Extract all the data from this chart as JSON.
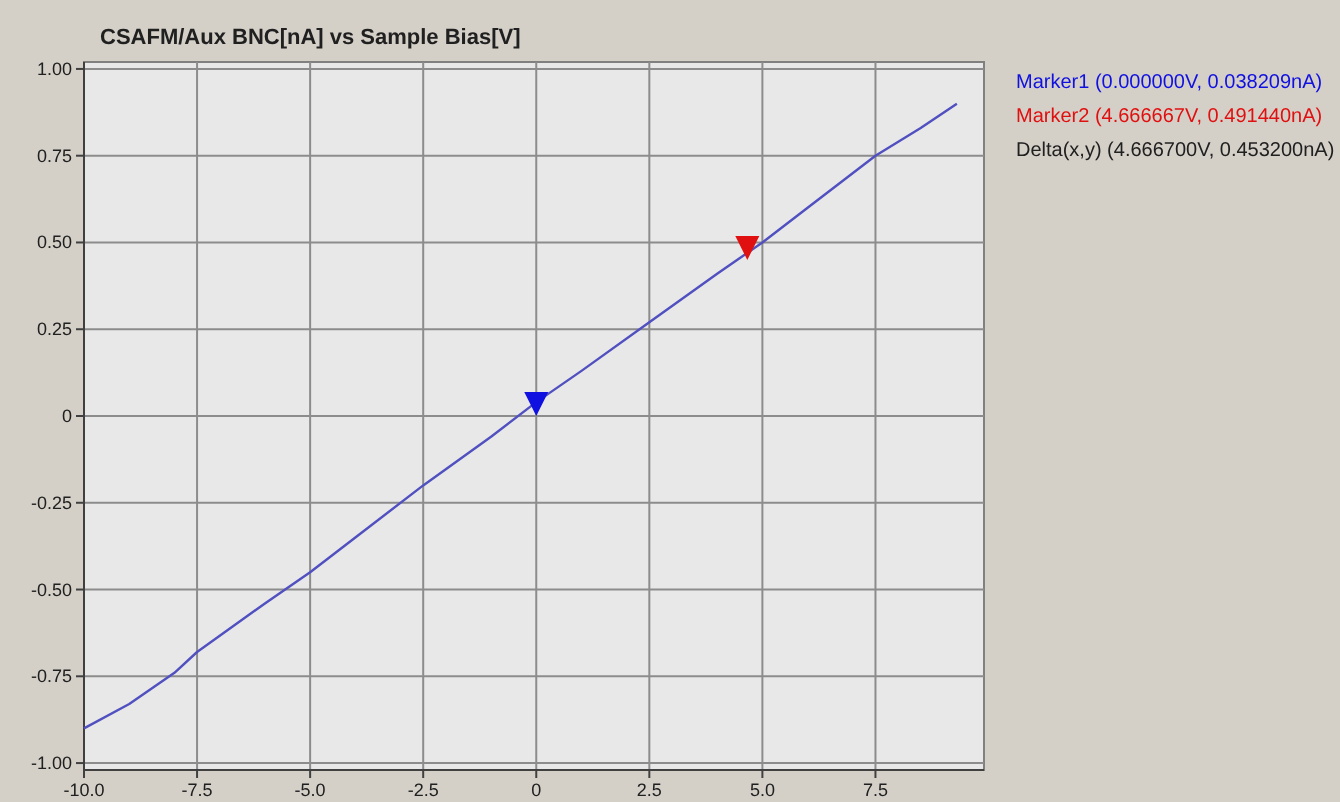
{
  "chart_data": {
    "type": "line",
    "title": "CSAFM/Aux BNC[nA] vs Sample Bias[V]",
    "xlim": [
      -10,
      9.9
    ],
    "ylim": [
      -1.02,
      1.02
    ],
    "xticks": [
      {
        "value": -10,
        "label": "-10.0"
      },
      {
        "value": -7.5,
        "label": "-7.5"
      },
      {
        "value": -5,
        "label": "-5.0"
      },
      {
        "value": -2.5,
        "label": "-2.5"
      },
      0,
      {
        "value": 2.5,
        "label": "2.5"
      },
      {
        "value": 5,
        "label": "5.0"
      },
      {
        "value": 7.5,
        "label": "7.5"
      }
    ],
    "yticks": [
      {
        "value": -1,
        "label": "-1.00"
      },
      {
        "value": -0.75,
        "label": "-0.75"
      },
      {
        "value": -0.5,
        "label": "-0.50"
      },
      {
        "value": -0.25,
        "label": "-0.25"
      },
      0,
      {
        "value": 0.25,
        "label": "0.25"
      },
      {
        "value": 0.5,
        "label": "0.50"
      },
      {
        "value": 0.75,
        "label": "0.75"
      },
      {
        "value": 1,
        "label": "1.00"
      }
    ],
    "grid": true,
    "series": [
      {
        "color": "#5050c0",
        "x": [
          -10,
          -9,
          -8,
          -7.5,
          -6,
          -5,
          -4,
          -2.5,
          -1,
          0,
          1,
          2.5,
          4,
          5,
          6,
          7.5,
          8.5,
          9.3
        ],
        "values": [
          -0.9,
          -0.83,
          -0.74,
          -0.68,
          -0.54,
          -0.45,
          -0.35,
          -0.2,
          -0.06,
          0.04,
          0.13,
          0.27,
          0.41,
          0.5,
          0.6,
          0.75,
          0.83,
          0.9
        ]
      },
      {
        "type": "scatter",
        "name": "Marker1 (0.000000V, 0.038209nA)",
        "color": "#1010e0",
        "marker": "triangle",
        "x": [
          0
        ],
        "values": [
          0.04
        ]
      },
      {
        "type": "scatter",
        "name": "Marker2 (4.666667V, 0.491440nA)",
        "color": "#e01010",
        "marker": "triangle",
        "x": [
          4.666667
        ],
        "values": [
          0.49
        ]
      }
    ],
    "annotations": [
      "Delta(x,y) (4.666700V, 0.453200nA)"
    ]
  }
}
